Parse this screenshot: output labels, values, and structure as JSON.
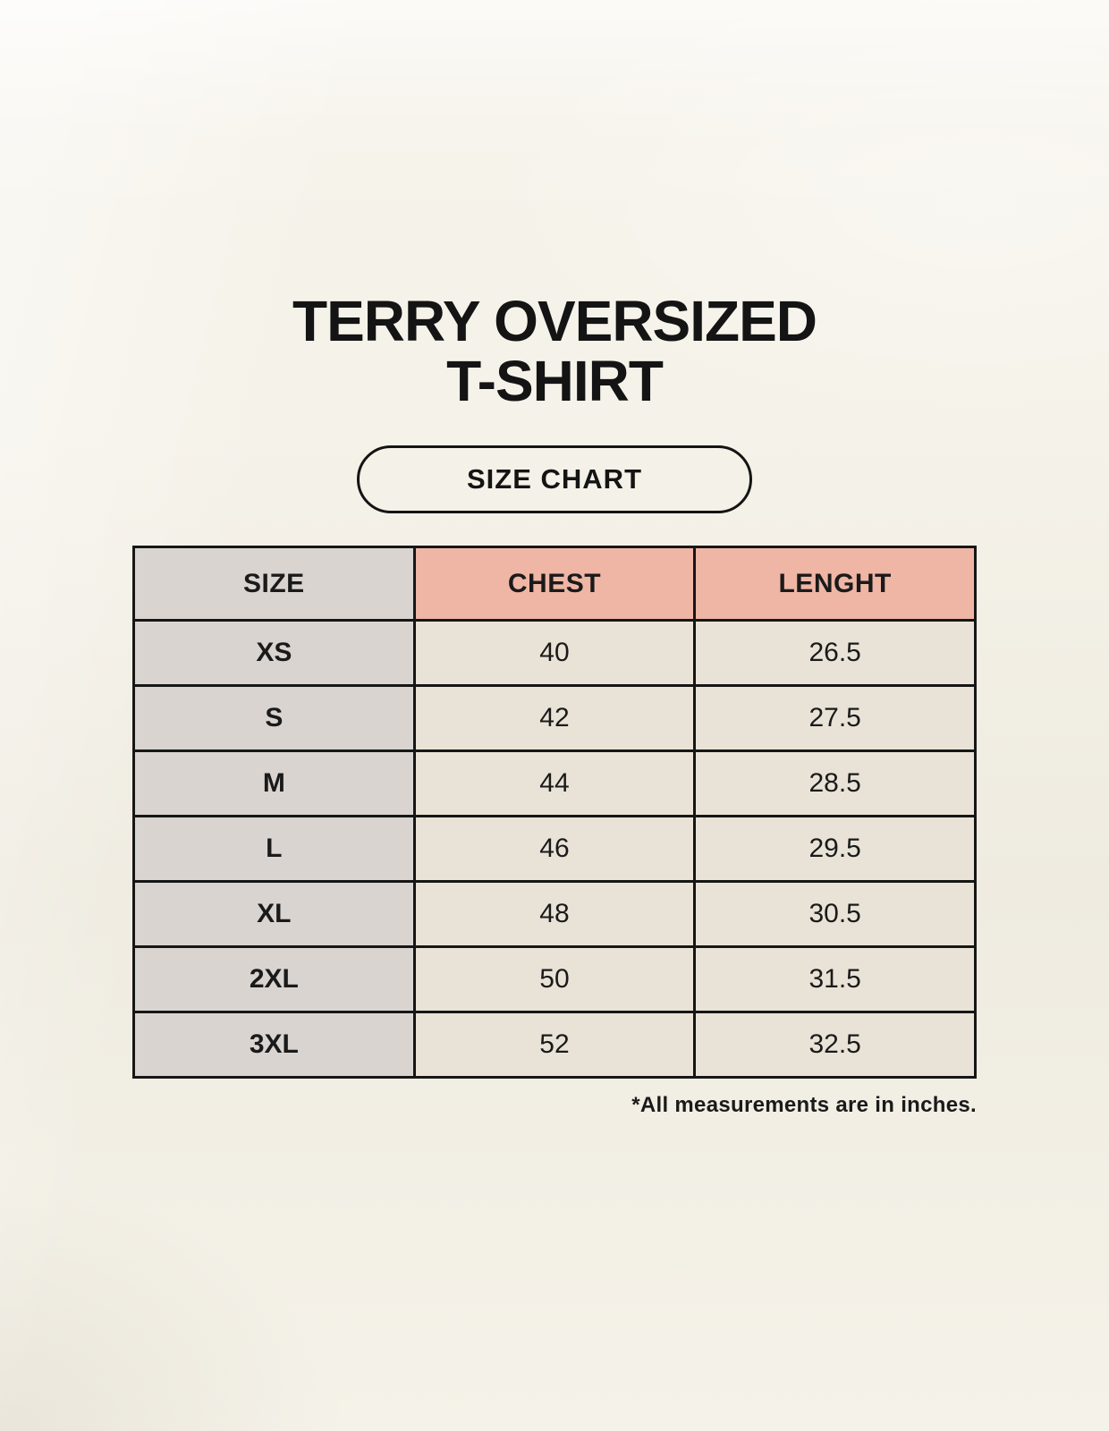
{
  "page": {
    "title_line1": "TERRY OVERSIZED",
    "title_line2": "T-SHIRT"
  },
  "chart_data": {
    "type": "table",
    "title": "TERRY OVERSIZED T-SHIRT",
    "subtitle": "SIZE CHART",
    "columns": [
      "SIZE",
      "CHEST",
      "LENGHT"
    ],
    "rows": [
      [
        "XS",
        "40",
        "26.5"
      ],
      [
        "S",
        "42",
        "27.5"
      ],
      [
        "M",
        "44",
        "28.5"
      ],
      [
        "L",
        "46",
        "29.5"
      ],
      [
        "XL",
        "48",
        "30.5"
      ],
      [
        "2XL",
        "50",
        "31.5"
      ],
      [
        "3XL",
        "52",
        "32.5"
      ]
    ],
    "footnote": "*All measurements are in inches.",
    "units": "inches"
  },
  "colors": {
    "background": "#f5f2e9",
    "size_column_bg": "#dad4d1",
    "measure_header_bg": "#efb5a5",
    "data_cell_bg": "#e9e3d7",
    "border": "#161616",
    "text": "#141414"
  }
}
